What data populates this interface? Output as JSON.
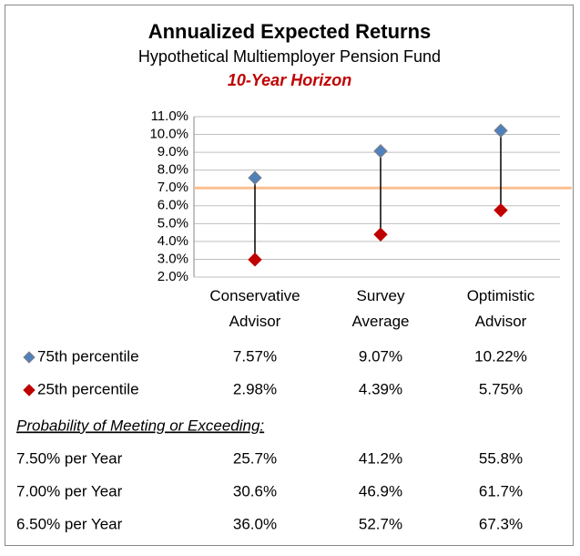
{
  "chart_data": {
    "type": "range",
    "title": "Annualized Expected Returns",
    "subtitle": "Hypothetical Multiemployer Pension Fund",
    "horizon": "10-Year Horizon",
    "categories": [
      "Conservative Advisor",
      "Survey Average",
      "Optimistic Advisor"
    ],
    "series": [
      {
        "name": "75th percentile",
        "color": "#4f81bd",
        "values": [
          7.57,
          9.07,
          10.22
        ],
        "value_labels": [
          "7.57%",
          "9.07%",
          "10.22%"
        ]
      },
      {
        "name": "25th percentile",
        "color": "#c00000",
        "values": [
          2.98,
          4.39,
          5.75
        ],
        "value_labels": [
          "2.98%",
          "4.39%",
          "5.75%"
        ]
      }
    ],
    "reference_line": {
      "value": 7,
      "color": "#fac090"
    },
    "ylim": [
      2,
      11
    ],
    "yticks": [
      {
        "value": 2,
        "label": "2.0%"
      },
      {
        "value": 3,
        "label": "3.0%"
      },
      {
        "value": 4,
        "label": "4.0%"
      },
      {
        "value": 5,
        "label": "5.0%"
      },
      {
        "value": 6,
        "label": "6.0%"
      },
      {
        "value": 7,
        "label": "7.0%"
      },
      {
        "value": 8,
        "label": "8.0%"
      },
      {
        "value": 9,
        "label": "9.0%"
      },
      {
        "value": 10,
        "label": "10.0%"
      },
      {
        "value": 11,
        "label": "11.0%"
      }
    ],
    "grid": true,
    "probability_title": "Probability of Meeting or Exceeding:",
    "probability_rows": [
      {
        "label": "7.50% per Year",
        "values": [
          25.7,
          41.2,
          55.8
        ],
        "value_labels": [
          "25.7%",
          "41.2%",
          "55.8%"
        ]
      },
      {
        "label": "7.00% per Year",
        "values": [
          30.6,
          46.9,
          61.7
        ],
        "value_labels": [
          "30.6%",
          "46.9%",
          "61.7%"
        ]
      },
      {
        "label": "6.50% per Year",
        "values": [
          36.0,
          52.7,
          67.3
        ],
        "value_labels": [
          "36.0%",
          "52.7%",
          "67.3%"
        ]
      }
    ]
  }
}
